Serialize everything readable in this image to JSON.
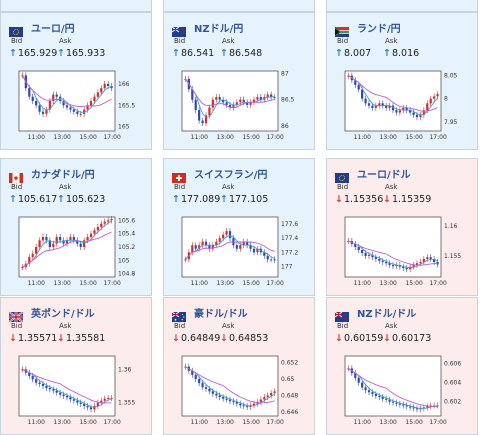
{
  "colors": {
    "up_arrow": "#2a7fc0",
    "down_arrow": "#d23a3a",
    "pair_text": "#2f5597",
    "candle_up": "#d62b2b",
    "candle_down": "#2d48b8",
    "ma_short": "#3aa0d6",
    "ma_long": "#c35ad8",
    "card_up_bg": "#e7f3fc",
    "card_down_bg": "#fdecec"
  },
  "labels": {
    "bid": "Bid",
    "ask": "Ask"
  },
  "cards": [
    {
      "pair": "ユーロ/円",
      "flag": "eu-flag",
      "direction": "up",
      "bid": "165.929",
      "ask": "165.933",
      "x_ticks": [
        "11:00",
        "13:00",
        "15:00",
        "17:00"
      ],
      "y_ticks": [
        "166",
        "165.5",
        "165"
      ],
      "y_tick_values": [
        166,
        165.5,
        165
      ],
      "ylim": [
        164.9,
        166.3
      ],
      "closes": [
        166.2,
        165.9,
        165.7,
        165.6,
        165.5,
        165.35,
        165.3,
        165.4,
        165.6,
        165.75,
        165.7,
        165.6,
        165.5,
        165.45,
        165.4,
        165.35,
        165.3,
        165.3,
        165.4,
        165.5,
        165.6,
        165.7,
        165.8,
        165.9,
        166.0,
        165.95,
        165.9
      ]
    },
    {
      "pair": "NZドル/円",
      "flag": "nz-flag",
      "direction": "up",
      "bid": "86.541",
      "ask": "86.548",
      "x_ticks": [
        "11:00",
        "13:00",
        "15:00",
        "17:00"
      ],
      "y_ticks": [
        "87",
        "86.5",
        "86"
      ],
      "y_tick_values": [
        87,
        86.5,
        86
      ],
      "ylim": [
        85.9,
        87.05
      ],
      "closes": [
        86.9,
        86.7,
        86.5,
        86.3,
        86.1,
        86.05,
        86.2,
        86.35,
        86.5,
        86.55,
        86.5,
        86.45,
        86.4,
        86.35,
        86.4,
        86.45,
        86.5,
        86.45,
        86.4,
        86.45,
        86.5,
        86.55,
        86.5,
        86.55,
        86.6,
        86.55,
        86.55
      ]
    },
    {
      "pair": "ランド/円",
      "flag": "za-flag",
      "direction": "up",
      "bid": "8.007",
      "ask": "8.016",
      "x_ticks": [
        "11:00",
        "13:00",
        "15:00",
        "17:00"
      ],
      "y_ticks": [
        "8.05",
        "8",
        "7.95"
      ],
      "y_tick_values": [
        8.05,
        8,
        7.95
      ],
      "ylim": [
        7.93,
        8.06
      ],
      "closes": [
        8.05,
        8.04,
        8.03,
        8.02,
        8.0,
        7.99,
        7.985,
        7.98,
        7.985,
        7.99,
        7.985,
        7.98,
        7.985,
        7.975,
        7.97,
        7.975,
        7.98,
        7.975,
        7.97,
        7.965,
        7.96,
        7.965,
        7.975,
        7.99,
        8.0,
        8.005,
        8.01
      ]
    },
    {
      "pair": "カナダドル/円",
      "flag": "ca-flag",
      "direction": "up",
      "bid": "105.617",
      "ask": "105.623",
      "x_ticks": [
        "11:00",
        "13:00",
        "15:00",
        "17:00"
      ],
      "y_ticks": [
        "105.6",
        "105.4",
        "105.2",
        "105",
        "104.8"
      ],
      "y_tick_values": [
        105.6,
        105.4,
        105.2,
        105,
        104.8
      ],
      "ylim": [
        104.75,
        105.65
      ],
      "closes": [
        104.9,
        104.95,
        105.05,
        105.1,
        105.2,
        105.3,
        105.35,
        105.3,
        105.2,
        105.25,
        105.35,
        105.3,
        105.25,
        105.3,
        105.35,
        105.3,
        105.25,
        105.2,
        105.3,
        105.35,
        105.4,
        105.45,
        105.5,
        105.55,
        105.58,
        105.6,
        105.62
      ]
    },
    {
      "pair": "スイスフラン/円",
      "flag": "ch-flag",
      "direction": "up",
      "bid": "177.089",
      "ask": "177.105",
      "x_ticks": [
        "11:00",
        "13:00",
        "15:00",
        "17:00"
      ],
      "y_ticks": [
        "177.6",
        "177.4",
        "177.2",
        "177"
      ],
      "y_tick_values": [
        177.6,
        177.4,
        177.2,
        177
      ],
      "ylim": [
        176.85,
        177.7
      ],
      "closes": [
        177.1,
        177.2,
        177.3,
        177.25,
        177.3,
        177.35,
        177.3,
        177.25,
        177.3,
        177.35,
        177.4,
        177.45,
        177.5,
        177.4,
        177.3,
        177.25,
        177.3,
        177.35,
        177.3,
        177.25,
        177.2,
        177.25,
        177.2,
        177.15,
        177.1,
        177.1,
        177.09
      ]
    },
    {
      "pair": "ユーロ/ドル",
      "flag": "eu-flag",
      "direction": "down",
      "bid": "1.15356",
      "ask": "1.15359",
      "x_ticks": [
        "11:00",
        "13:00",
        "15:00",
        "17:00"
      ],
      "y_ticks": [
        "1.16",
        "1.155"
      ],
      "y_tick_values": [
        1.16,
        1.155
      ],
      "ylim": [
        1.1515,
        1.1615
      ],
      "closes": [
        1.1575,
        1.157,
        1.1565,
        1.156,
        1.1555,
        1.155,
        1.1552,
        1.1548,
        1.1545,
        1.1542,
        1.154,
        1.1538,
        1.1535,
        1.1533,
        1.1535,
        1.1532,
        1.153,
        1.1528,
        1.1532,
        1.1535,
        1.1538,
        1.154,
        1.1545,
        1.1548,
        1.1545,
        1.154,
        1.1536
      ]
    },
    {
      "pair": "英ポンド/ドル",
      "flag": "gb-flag",
      "direction": "down",
      "bid": "1.35571",
      "ask": "1.35581",
      "x_ticks": [
        "11:00",
        "13:00",
        "15:00",
        "17:00"
      ],
      "y_ticks": [
        "1.36",
        "1.355"
      ],
      "y_tick_values": [
        1.36,
        1.355
      ],
      "ylim": [
        1.353,
        1.362
      ],
      "closes": [
        1.36,
        1.3595,
        1.359,
        1.3585,
        1.358,
        1.3578,
        1.3575,
        1.3572,
        1.357,
        1.3568,
        1.3565,
        1.3562,
        1.356,
        1.3558,
        1.3555,
        1.3553,
        1.355,
        1.3548,
        1.3545,
        1.3543,
        1.354,
        1.3545,
        1.355,
        1.3553,
        1.3556,
        1.3557,
        1.3557
      ]
    },
    {
      "pair": "豪ドル/ドル",
      "flag": "au-flag",
      "direction": "down",
      "bid": "0.64849",
      "ask": "0.64853",
      "x_ticks": [
        "11:00",
        "13:00",
        "15:00",
        "17:00"
      ],
      "y_ticks": [
        "0.652",
        "0.65",
        "0.648",
        "0.646"
      ],
      "y_tick_values": [
        0.652,
        0.65,
        0.648,
        0.646
      ],
      "ylim": [
        0.6455,
        0.6528
      ],
      "closes": [
        0.6515,
        0.651,
        0.6505,
        0.65,
        0.6495,
        0.649,
        0.6488,
        0.6485,
        0.6482,
        0.648,
        0.6478,
        0.6476,
        0.6475,
        0.6473,
        0.6472,
        0.647,
        0.6468,
        0.6467,
        0.6466,
        0.6468,
        0.647,
        0.6472,
        0.6475,
        0.6478,
        0.648,
        0.6483,
        0.6485
      ]
    },
    {
      "pair": "NZドル/ドル",
      "flag": "nz-flag",
      "direction": "down",
      "bid": "0.60159",
      "ask": "0.60173",
      "x_ticks": [
        "11:00",
        "13:00",
        "15:00",
        "17:00"
      ],
      "y_ticks": [
        "0.606",
        "0.604",
        "0.602"
      ],
      "y_tick_values": [
        0.606,
        0.604,
        0.602
      ],
      "ylim": [
        0.6005,
        0.6068
      ],
      "closes": [
        0.6055,
        0.605,
        0.6045,
        0.604,
        0.6035,
        0.6032,
        0.603,
        0.6028,
        0.6026,
        0.6025,
        0.6023,
        0.6022,
        0.602,
        0.6019,
        0.6018,
        0.6017,
        0.6016,
        0.6015,
        0.6014,
        0.6013,
        0.6012,
        0.6013,
        0.6014,
        0.6015,
        0.6016,
        0.6016,
        0.6016
      ]
    }
  ]
}
